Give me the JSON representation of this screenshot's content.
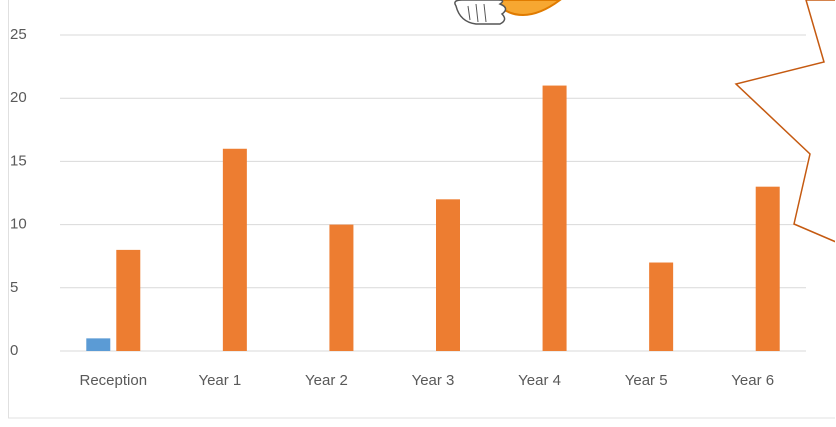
{
  "chart_data": {
    "type": "bar",
    "categories": [
      "Reception",
      "Year 1",
      "Year 2",
      "Year 3",
      "Year 4",
      "Year 5",
      "Year 6"
    ],
    "series": [
      {
        "color": "#5b9bd5",
        "values": [
          1,
          0,
          0,
          0,
          0,
          0,
          0
        ]
      },
      {
        "color": "#ed7d31",
        "values": [
          8,
          16,
          10,
          12,
          21,
          7,
          13
        ]
      }
    ],
    "ylim": [
      0,
      25
    ],
    "yticks": [
      0,
      5,
      10,
      15,
      20,
      25
    ],
    "grid": true
  }
}
